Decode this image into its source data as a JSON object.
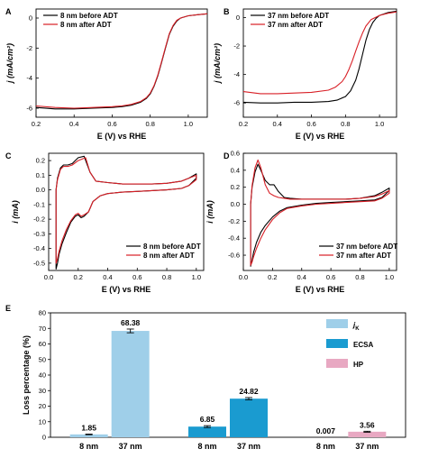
{
  "figure": {
    "colors": {
      "before": "#000000",
      "after": "#d81f26",
      "jk": "#9fcfe9",
      "ecsa": "#1a9bd0",
      "hp": "#e8a8c2"
    }
  },
  "chart_data": [
    {
      "panel": "A",
      "type": "line",
      "xlabel": "E (V) vs RHE",
      "ylabel": "j (mA/cm²)",
      "xlim": [
        0.2,
        1.1
      ],
      "ylim": [
        -6.6,
        0.6
      ],
      "xticks": [
        0.2,
        0.4,
        0.6,
        0.8,
        1.0
      ],
      "yticks": [
        0,
        -2,
        -4,
        -6
      ],
      "legend_position": "top-left",
      "series": [
        {
          "name": "8 nm before ADT",
          "color": "#000000",
          "x": [
            0.2,
            0.3,
            0.4,
            0.5,
            0.6,
            0.65,
            0.7,
            0.75,
            0.78,
            0.8,
            0.82,
            0.84,
            0.86,
            0.88,
            0.9,
            0.92,
            0.94,
            0.96,
            1.0,
            1.05,
            1.1
          ],
          "y": [
            -5.95,
            -6.05,
            -6.05,
            -6.0,
            -5.95,
            -5.9,
            -5.8,
            -5.6,
            -5.35,
            -5.05,
            -4.55,
            -3.85,
            -2.95,
            -2.0,
            -1.1,
            -0.55,
            -0.2,
            0.0,
            0.15,
            0.22,
            0.28
          ]
        },
        {
          "name": "8 nm after ADT",
          "color": "#d81f26",
          "x": [
            0.2,
            0.3,
            0.4,
            0.5,
            0.6,
            0.65,
            0.7,
            0.75,
            0.78,
            0.8,
            0.82,
            0.84,
            0.86,
            0.88,
            0.9,
            0.92,
            0.94,
            0.96,
            1.0,
            1.05,
            1.1
          ],
          "y": [
            -5.85,
            -5.95,
            -6.0,
            -5.95,
            -5.9,
            -5.85,
            -5.75,
            -5.55,
            -5.3,
            -5.0,
            -4.5,
            -3.8,
            -2.9,
            -1.95,
            -1.05,
            -0.5,
            -0.15,
            0.0,
            0.15,
            0.22,
            0.28
          ]
        }
      ]
    },
    {
      "panel": "B",
      "type": "line",
      "xlabel": "E (V) vs RHE",
      "ylabel": "j (mA/cm²)",
      "xlim": [
        0.2,
        1.1
      ],
      "ylim": [
        -7.0,
        0.6
      ],
      "xticks": [
        0.2,
        0.4,
        0.6,
        0.8,
        1.0
      ],
      "yticks": [
        0,
        -2,
        -4,
        -6
      ],
      "legend_position": "top-left",
      "series": [
        {
          "name": "37 nm before ADT",
          "color": "#000000",
          "x": [
            0.2,
            0.3,
            0.4,
            0.5,
            0.6,
            0.7,
            0.75,
            0.8,
            0.83,
            0.86,
            0.88,
            0.9,
            0.92,
            0.94,
            0.96,
            0.98,
            1.0,
            1.05,
            1.1
          ],
          "y": [
            -5.95,
            -6.0,
            -6.0,
            -5.95,
            -5.95,
            -5.9,
            -5.8,
            -5.55,
            -5.15,
            -4.4,
            -3.6,
            -2.6,
            -1.6,
            -0.85,
            -0.35,
            -0.05,
            0.15,
            0.35,
            0.45
          ]
        },
        {
          "name": "37 nm after ADT",
          "color": "#d81f26",
          "x": [
            0.2,
            0.3,
            0.4,
            0.5,
            0.6,
            0.7,
            0.74,
            0.78,
            0.8,
            0.82,
            0.84,
            0.86,
            0.88,
            0.9,
            0.92,
            0.95,
            1.0,
            1.05,
            1.1
          ],
          "y": [
            -5.2,
            -5.35,
            -5.35,
            -5.3,
            -5.25,
            -5.1,
            -4.9,
            -4.5,
            -4.15,
            -3.65,
            -3.05,
            -2.35,
            -1.7,
            -1.1,
            -0.6,
            -0.15,
            0.15,
            0.3,
            0.4
          ]
        }
      ]
    },
    {
      "panel": "C",
      "type": "line",
      "xlabel": "E (V) vs RHE",
      "ylabel": "i (mA)",
      "xlim": [
        0.0,
        1.05
      ],
      "ylim": [
        -0.55,
        0.25
      ],
      "xticks": [
        0.0,
        0.2,
        0.4,
        0.6,
        0.8,
        1.0
      ],
      "yticks": [
        0.2,
        0.1,
        0.0,
        -0.1,
        -0.2,
        -0.3,
        -0.4,
        -0.5
      ],
      "legend_position": "bottom-right",
      "series": [
        {
          "name": "8 nm before ADT",
          "color": "#000000",
          "x": [
            0.05,
            0.06,
            0.08,
            0.1,
            0.13,
            0.16,
            0.2,
            0.24,
            0.28,
            0.32,
            0.4,
            0.5,
            0.6,
            0.7,
            0.8,
            0.9,
            0.95,
            1.0,
            1.0,
            0.95,
            0.9,
            0.8,
            0.7,
            0.6,
            0.5,
            0.4,
            0.35,
            0.3,
            0.27,
            0.24,
            0.22,
            0.2,
            0.18,
            0.15,
            0.12,
            0.09,
            0.07,
            0.06,
            0.05
          ],
          "y": [
            0.0,
            0.08,
            0.15,
            0.17,
            0.17,
            0.18,
            0.22,
            0.23,
            0.12,
            0.06,
            0.05,
            0.04,
            0.04,
            0.04,
            0.045,
            0.06,
            0.08,
            0.11,
            0.08,
            0.03,
            0.01,
            0.0,
            -0.005,
            -0.01,
            -0.015,
            -0.025,
            -0.04,
            -0.08,
            -0.15,
            -0.18,
            -0.19,
            -0.17,
            -0.18,
            -0.22,
            -0.29,
            -0.37,
            -0.44,
            -0.5,
            -0.54
          ]
        },
        {
          "name": "8 nm after ADT",
          "color": "#d81f26",
          "x": [
            0.05,
            0.06,
            0.08,
            0.1,
            0.13,
            0.16,
            0.2,
            0.25,
            0.28,
            0.32,
            0.4,
            0.5,
            0.6,
            0.7,
            0.8,
            0.9,
            0.95,
            1.0,
            1.0,
            0.95,
            0.9,
            0.8,
            0.7,
            0.6,
            0.5,
            0.4,
            0.35,
            0.3,
            0.27,
            0.24,
            0.22,
            0.2,
            0.18,
            0.15,
            0.12,
            0.09,
            0.07,
            0.06,
            0.05
          ],
          "y": [
            0.0,
            0.07,
            0.14,
            0.16,
            0.16,
            0.17,
            0.2,
            0.22,
            0.12,
            0.06,
            0.05,
            0.04,
            0.04,
            0.04,
            0.045,
            0.06,
            0.08,
            0.1,
            0.07,
            0.03,
            0.01,
            0.0,
            -0.005,
            -0.01,
            -0.015,
            -0.025,
            -0.04,
            -0.08,
            -0.15,
            -0.17,
            -0.18,
            -0.16,
            -0.17,
            -0.21,
            -0.27,
            -0.35,
            -0.42,
            -0.47,
            -0.5
          ]
        }
      ]
    },
    {
      "panel": "D",
      "type": "line",
      "xlabel": "E (V) vs RHE",
      "ylabel": "i (mA)",
      "xlim": [
        0.0,
        1.05
      ],
      "ylim": [
        -0.78,
        0.6
      ],
      "xticks": [
        0.0,
        0.2,
        0.4,
        0.6,
        0.8,
        1.0
      ],
      "yticks": [
        0.6,
        0.4,
        0.2,
        0.0,
        -0.2,
        -0.4,
        -0.6
      ],
      "legend_position": "bottom-right",
      "series": [
        {
          "name": "37 nm before ADT",
          "color": "#000000",
          "x": [
            0.05,
            0.06,
            0.08,
            0.1,
            0.12,
            0.15,
            0.18,
            0.21,
            0.24,
            0.28,
            0.32,
            0.4,
            0.5,
            0.6,
            0.7,
            0.8,
            0.9,
            0.95,
            1.0,
            1.0,
            0.95,
            0.9,
            0.8,
            0.7,
            0.6,
            0.5,
            0.4,
            0.3,
            0.25,
            0.2,
            0.15,
            0.12,
            0.09,
            0.07,
            0.06,
            0.05
          ],
          "y": [
            0.0,
            0.2,
            0.38,
            0.47,
            0.4,
            0.28,
            0.23,
            0.23,
            0.15,
            0.08,
            0.07,
            0.06,
            0.06,
            0.06,
            0.06,
            0.07,
            0.1,
            0.14,
            0.19,
            0.16,
            0.08,
            0.05,
            0.04,
            0.03,
            0.02,
            0.01,
            -0.01,
            -0.04,
            -0.08,
            -0.15,
            -0.25,
            -0.33,
            -0.45,
            -0.57,
            -0.66,
            -0.73
          ]
        },
        {
          "name": "37 nm after ADT",
          "color": "#d81f26",
          "x": [
            0.05,
            0.06,
            0.08,
            0.1,
            0.12,
            0.15,
            0.18,
            0.21,
            0.24,
            0.28,
            0.32,
            0.4,
            0.5,
            0.6,
            0.7,
            0.8,
            0.9,
            0.95,
            1.0,
            1.0,
            0.95,
            0.9,
            0.8,
            0.7,
            0.6,
            0.5,
            0.4,
            0.3,
            0.25,
            0.2,
            0.15,
            0.12,
            0.09,
            0.07,
            0.06,
            0.05
          ],
          "y": [
            0.0,
            0.22,
            0.43,
            0.52,
            0.43,
            0.23,
            0.13,
            0.1,
            0.08,
            0.07,
            0.06,
            0.06,
            0.06,
            0.06,
            0.06,
            0.07,
            0.09,
            0.12,
            0.16,
            0.13,
            0.07,
            0.04,
            0.03,
            0.02,
            0.01,
            0.0,
            -0.02,
            -0.05,
            -0.1,
            -0.18,
            -0.3,
            -0.4,
            -0.52,
            -0.62,
            -0.68,
            -0.72
          ]
        }
      ]
    },
    {
      "panel": "E",
      "type": "bar",
      "ylabel": "Loss percentage (%)",
      "ylim": [
        0,
        80
      ],
      "yticks": [
        0,
        10,
        20,
        30,
        40,
        50,
        60,
        70,
        80
      ],
      "groups": [
        "jK",
        "ECSA",
        "HP"
      ],
      "categories": [
        "8 nm",
        "37 nm"
      ],
      "legend_position": "top-right",
      "series": [
        {
          "name": "jK",
          "color": "#9fcfe9",
          "values": [
            1.85,
            68.38
          ],
          "labels": [
            "1.85",
            "68.38"
          ],
          "errors": [
            0.2,
            1.2
          ]
        },
        {
          "name": "ECSA",
          "color": "#1a9bd0",
          "values": [
            6.85,
            24.82
          ],
          "labels": [
            "6.85",
            "24.82"
          ],
          "errors": [
            0.6,
            0.7
          ]
        },
        {
          "name": "HP",
          "color": "#e8a8c2",
          "values": [
            0.007,
            3.56
          ],
          "labels": [
            "0.007",
            "3.56"
          ],
          "errors": [
            0,
            0.3
          ]
        }
      ]
    }
  ]
}
